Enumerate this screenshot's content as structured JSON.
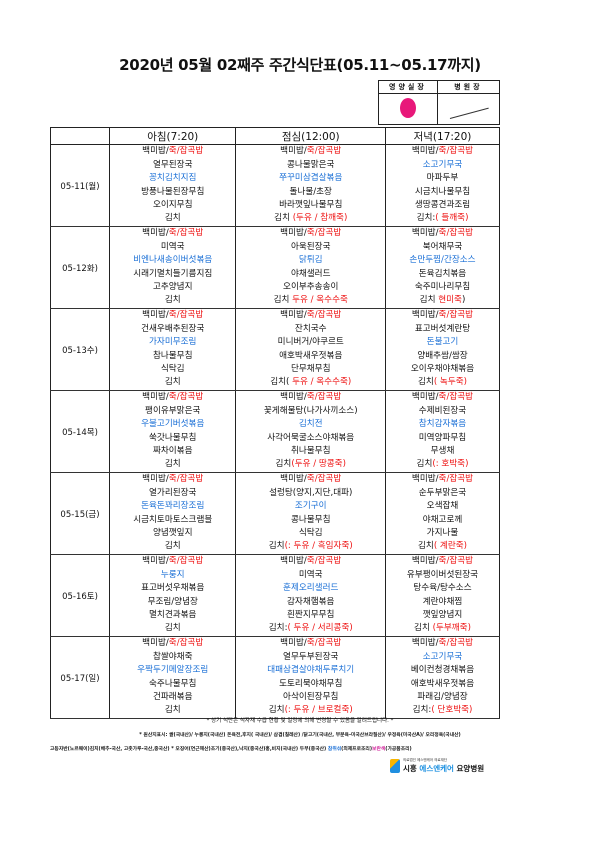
{
  "title": "2020년 05월 02째주 주간식단표(05.11~05.17까지)",
  "approval": {
    "nutrition_chief": "영양실장",
    "director": "병원장"
  },
  "colors": {
    "k": "#111111",
    "r": "#ee1111",
    "b": "#1a6fd6"
  },
  "headers": [
    "",
    "아침(7:20)",
    "점심(12:00)",
    "저녁(17:20)"
  ],
  "days": [
    {
      "date": "05-11(월)",
      "meals": [
        [
          [
            [
              "백미밥/",
              "k"
            ],
            [
              "죽/잡곡밥",
              "r"
            ]
          ],
          [
            [
              "열무된장국",
              "k"
            ]
          ],
          [
            [
              "꽁치김치지짐",
              "b"
            ]
          ],
          [
            [
              "방풍나물된장무침",
              "k"
            ]
          ],
          [
            [
              "오이지무침",
              "k"
            ]
          ],
          [
            [
              "김치",
              "k"
            ]
          ]
        ],
        [
          [
            [
              "백미밥/",
              "k"
            ],
            [
              "죽/잡곡밥",
              "r"
            ]
          ],
          [
            [
              "콩나물맑은국",
              "k"
            ]
          ],
          [
            [
              "쭈꾸미삼겹살볶음",
              "b"
            ]
          ],
          [
            [
              "돌나물/초장",
              "k"
            ]
          ],
          [
            [
              "바라깻잎나물무침",
              "k"
            ]
          ],
          [
            [
              "김치 ",
              "k"
            ],
            [
              "(두유 / 참깨죽)",
              "r"
            ]
          ]
        ],
        [
          [
            [
              "백미밥/",
              "k"
            ],
            [
              "죽/잡곡밥",
              "r"
            ]
          ],
          [
            [
              "소고기무국",
              "b"
            ]
          ],
          [
            [
              "마파두부",
              "k"
            ]
          ],
          [
            [
              "시금치나물무침",
              "k"
            ]
          ],
          [
            [
              "생땅콩견과조림",
              "k"
            ]
          ],
          [
            [
              "김치:",
              "k"
            ],
            [
              "( 들깨죽)",
              "r"
            ]
          ]
        ]
      ]
    },
    {
      "date": "05-12화)",
      "meals": [
        [
          [
            [
              "백미밥/",
              "k"
            ],
            [
              "죽/잡곡밥",
              "r"
            ]
          ],
          [
            [
              "미역국",
              "k"
            ]
          ],
          [
            [
              "비엔나새송이버섯볶음",
              "b"
            ]
          ],
          [
            [
              "시래기멸치들기름지짐",
              "k"
            ]
          ],
          [
            [
              "고추양념지",
              "k"
            ]
          ],
          [
            [
              "김치",
              "k"
            ]
          ]
        ],
        [
          [
            [
              "백미밥/",
              "k"
            ],
            [
              "죽/잡곡밥",
              "r"
            ]
          ],
          [
            [
              "아욱된장국",
              "k"
            ]
          ],
          [
            [
              "닭튀김",
              "b"
            ]
          ],
          [
            [
              "야채샐러드",
              "k"
            ]
          ],
          [
            [
              "오이부추송송이",
              "k"
            ]
          ],
          [
            [
              "김치 ",
              "k"
            ],
            [
              "두유 / 옥수수죽",
              "r"
            ]
          ]
        ],
        [
          [
            [
              "백미밥/",
              "k"
            ],
            [
              "죽/잡곡밥",
              "r"
            ]
          ],
          [
            [
              "북어채무국",
              "k"
            ]
          ],
          [
            [
              "손만두찜/간장소스",
              "b"
            ]
          ],
          [
            [
              "돈육김치볶음",
              "k"
            ]
          ],
          [
            [
              "숙주미나리무침",
              "k"
            ]
          ],
          [
            [
              "김치 ",
              "k"
            ],
            [
              "현미죽",
              "r"
            ],
            [
              ")",
              "k"
            ]
          ]
        ]
      ]
    },
    {
      "date": "05-13수)",
      "meals": [
        [
          [
            [
              "백미밥/",
              "k"
            ],
            [
              "죽/잡곡밥",
              "r"
            ]
          ],
          [
            [
              "건새우배추된장국",
              "k"
            ]
          ],
          [
            [
              "가자미무조림",
              "b"
            ]
          ],
          [
            [
              "참나물무침",
              "k"
            ]
          ],
          [
            [
              "식탁김",
              "k"
            ]
          ],
          [
            [
              "김치",
              "k"
            ]
          ]
        ],
        [
          [
            [
              "백미밥/",
              "k"
            ],
            [
              "죽/잡곡밥",
              "r"
            ]
          ],
          [
            [
              "잔치국수",
              "k"
            ]
          ],
          [
            [
              "미니버거/야쿠르트",
              "k"
            ]
          ],
          [
            [
              "애호박새우젓볶음",
              "k"
            ]
          ],
          [
            [
              "단무채무침",
              "k"
            ]
          ],
          [
            [
              "김치(",
              "k"
            ],
            [
              " 두유 / 옥수수죽)",
              "r"
            ]
          ]
        ],
        [
          [
            [
              "백미밥/",
              "k"
            ],
            [
              "죽/잡곡밥",
              "r"
            ]
          ],
          [
            [
              "표고버섯계란탕",
              "k"
            ]
          ],
          [
            [
              "돈불고기",
              "b"
            ]
          ],
          [
            [
              "양배추쌈/쌈장",
              "k"
            ]
          ],
          [
            [
              "오이우채야채볶음",
              "k"
            ]
          ],
          [
            [
              "김치",
              "k"
            ],
            [
              "( 녹두죽)",
              "r"
            ]
          ]
        ]
      ]
    },
    {
      "date": "05-14목)",
      "meals": [
        [
          [
            [
              "백미밥/",
              "k"
            ],
            [
              "죽/잡곡밥",
              "r"
            ]
          ],
          [
            [
              "팽이유부맑은국",
              "k"
            ]
          ],
          [
            [
              "우불고기버섯볶음",
              "b"
            ]
          ],
          [
            [
              "쑥갓나물무침",
              "k"
            ]
          ],
          [
            [
              "짜차이볶음",
              "k"
            ]
          ],
          [
            [
              "김치",
              "k"
            ]
          ]
        ],
        [
          [
            [
              "백미밥/",
              "k"
            ],
            [
              "죽/잡곡밥",
              "r"
            ]
          ],
          [
            [
              "꽃게해물탕(나가사끼소스)",
              "k"
            ]
          ],
          [
            [
              "김치전",
              "b"
            ]
          ],
          [
            [
              "사각어묵굴소스야채볶음",
              "k"
            ]
          ],
          [
            [
              "취나물무침",
              "k"
            ]
          ],
          [
            [
              "김치",
              "k"
            ],
            [
              "(두유 / 땅콩죽)",
              "r"
            ]
          ]
        ],
        [
          [
            [
              "백미밥/",
              "k"
            ],
            [
              "죽/잡곡밥",
              "r"
            ]
          ],
          [
            [
              "수제비된장국",
              "k"
            ]
          ],
          [
            [
              "참치감자볶음",
              "b"
            ]
          ],
          [
            [
              "미역양파무침",
              "k"
            ]
          ],
          [
            [
              "무생채",
              "k"
            ]
          ],
          [
            [
              "김치",
              "k"
            ],
            [
              "(: 호박죽)",
              "r"
            ]
          ]
        ]
      ]
    },
    {
      "date": "05-15(금)",
      "meals": [
        [
          [
            [
              "백미밥/",
              "k"
            ],
            [
              "죽/잡곡밥",
              "r"
            ]
          ],
          [
            [
              "열가리된장국",
              "k"
            ]
          ],
          [
            [
              "돈육돈꽈리장조림",
              "b"
            ]
          ],
          [
            [
              "시금치토마토스크램블",
              "k"
            ]
          ],
          [
            [
              "양념깻잎지",
              "k"
            ]
          ],
          [
            [
              "김치",
              "k"
            ]
          ]
        ],
        [
          [
            [
              "백미밥/",
              "k"
            ],
            [
              "죽/잡곡밥",
              "r"
            ]
          ],
          [
            [
              "설렁탕(양지,지단,대파)",
              "k"
            ]
          ],
          [
            [
              "조기구이",
              "b"
            ]
          ],
          [
            [
              "콩나물무침",
              "k"
            ]
          ],
          [
            [
              "식탁김",
              "k"
            ]
          ],
          [
            [
              "김치",
              "k"
            ],
            [
              "(: 두유 / 흑임자죽)",
              "r"
            ]
          ]
        ],
        [
          [
            [
              "백미밥/",
              "k"
            ],
            [
              "죽/잡곡밥",
              "r"
            ]
          ],
          [
            [
              "순두부맑은국",
              "k"
            ]
          ],
          [
            [
              "오색잡채",
              "k"
            ]
          ],
          [
            [
              "야채고로께",
              "k"
            ]
          ],
          [
            [
              "가지나물",
              "k"
            ]
          ],
          [
            [
              "김치",
              "k"
            ],
            [
              "( 계란죽)",
              "r"
            ]
          ]
        ]
      ]
    },
    {
      "date": "05-16토)",
      "meals": [
        [
          [
            [
              "백미밥/",
              "k"
            ],
            [
              "죽/잡곡밥",
              "r"
            ]
          ],
          [
            [
              "누룽지",
              "b"
            ]
          ],
          [
            [
              "표고버섯우채볶음",
              "k"
            ]
          ],
          [
            [
              "무조림/양념장",
              "k"
            ]
          ],
          [
            [
              "멸치견과볶음",
              "k"
            ]
          ],
          [
            [
              "김치",
              "k"
            ]
          ]
        ],
        [
          [
            [
              "백미밥/",
              "k"
            ],
            [
              "죽/잡곡밥",
              "r"
            ]
          ],
          [
            [
              "미역국",
              "k"
            ]
          ],
          [
            [
              "훈제오리샐러드",
              "b"
            ]
          ],
          [
            [
              "감자채햄볶음",
              "k"
            ]
          ],
          [
            [
              "흰짠지무무침",
              "k"
            ]
          ],
          [
            [
              "김치:",
              "k"
            ],
            [
              "( 두유 / 서리콩죽)",
              "r"
            ]
          ]
        ],
        [
          [
            [
              "백미밥/",
              "k"
            ],
            [
              "죽/잡곡밥",
              "r"
            ]
          ],
          [
            [
              "유부팽이버섯된장국",
              "k"
            ]
          ],
          [
            [
              "탕수육/탕수소스",
              "k"
            ]
          ],
          [
            [
              "계란야채찜",
              "k"
            ]
          ],
          [
            [
              "깻잎양념지",
              "k"
            ]
          ],
          [
            [
              "김치 ",
              "k"
            ],
            [
              "(두부깨죽)",
              "r"
            ]
          ]
        ]
      ]
    },
    {
      "date": "05-17(일)",
      "meals": [
        [
          [
            [
              "백미밥/",
              "k"
            ],
            [
              "죽/잡곡밥",
              "r"
            ]
          ],
          [
            [
              "찹쌀야채죽",
              "k"
            ]
          ],
          [
            [
              "우짝두기메알장조림",
              "b"
            ]
          ],
          [
            [
              "숙주나물무침",
              "k"
            ]
          ],
          [
            [
              "건파래볶음",
              "k"
            ]
          ],
          [
            [
              "김치",
              "k"
            ]
          ]
        ],
        [
          [
            [
              "백미밥/",
              "k"
            ],
            [
              "죽/잡곡밥",
              "r"
            ]
          ],
          [
            [
              "열무두부된장국",
              "k"
            ]
          ],
          [
            [
              "대패삼겹살야채두루치기",
              "b"
            ]
          ],
          [
            [
              "도토리묵야채무침",
              "k"
            ]
          ],
          [
            [
              "아삭이된장무침",
              "k"
            ]
          ],
          [
            [
              "김치",
              "k"
            ],
            [
              "(: 두유 / 브로컬죽)",
              "r"
            ]
          ]
        ],
        [
          [
            [
              "백미밥/",
              "k"
            ],
            [
              "죽/잡곡밥",
              "r"
            ]
          ],
          [
            [
              "소고기무국",
              "b"
            ]
          ],
          [
            [
              "베이컨청경채볶음",
              "k"
            ]
          ],
          [
            [
              "애호박새우젓볶음",
              "k"
            ]
          ],
          [
            [
              "파래김/양념장",
              "k"
            ]
          ],
          [
            [
              "김치:",
              "k"
            ],
            [
              "( 단호박죽)",
              "r"
            ]
          ]
        ]
      ]
    }
  ],
  "footer": {
    "note": "* 상기 식단은 식자재 수급 현황 및 일정에 의해 변경될 수 있음을 알려드립니다. *",
    "origin1": "* 원산지표시: 쌀(국내산)/ 누룽지(국내산) 돈육전,후지( 국내산)/ 삼겹(칠레산) /닭고기(국내산, 부분육-미국산브라질산)/ 우정육(미국산A)/ 오리정육(국내산)",
    "origin2": "고등자반(노르웨이)김치(배추-국산, 고춧가루-국산,중국산) * 오징어(연근해산)조기(중국산),낙지(중국산)홍,비지(국내산) 두부(중국산) ",
    "origin2_blue": "참취섞",
    "origin2_mid": "(외제프로조리)",
    "origin2_magenta": "보란색",
    "origin2_end": "(가공품조리)"
  },
  "logo": {
    "sub": "의료법인 에스엔케어 의료재단",
    "name_pre": "시흥 ",
    "name_brand": "에스엔케어",
    "name_post": " 요양병원"
  }
}
